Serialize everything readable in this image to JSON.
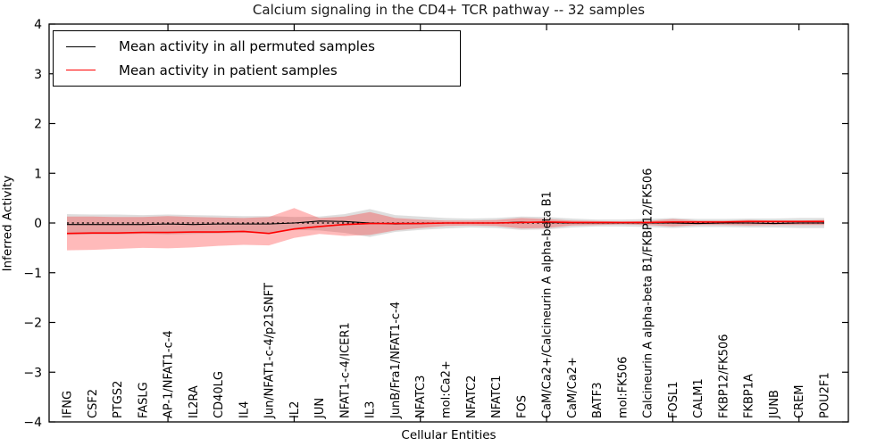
{
  "figure": {
    "title": "Calcium signaling in the CD4+ TCR pathway -- 32 samples",
    "xlabel": "Cellular Entities",
    "ylabel": "Inferred Activity"
  },
  "legend": {
    "entries": [
      {
        "label": "Mean activity in all permuted samples",
        "color": "#000000"
      },
      {
        "label": "Mean activity in patient samples",
        "color": "#ff0000"
      }
    ]
  },
  "chart_data": {
    "type": "line",
    "title": "Calcium signaling in the CD4+ TCR pathway -- 32 samples",
    "xlabel": "Cellular Entities",
    "ylabel": "Inferred Activity",
    "ylim": [
      -4,
      4
    ],
    "yticks": [
      -4,
      -3,
      -2,
      -1,
      0,
      1,
      2,
      3,
      4
    ],
    "ytick_labels": [
      "−4",
      "−3",
      "−2",
      "−1",
      "0",
      "1",
      "2",
      "3",
      "4"
    ],
    "grid": false,
    "legend_position": "upper left",
    "major_tick_indices": [
      4,
      9,
      14,
      19,
      24,
      29
    ],
    "zero_line": {
      "y": 0,
      "style": "dashed",
      "color": "#000000"
    },
    "categories": [
      "IFNG",
      "CSF2",
      "PTGS2",
      "FASLG",
      "AP-1/NFAT1-c-4",
      "IL2RA",
      "CD40LG",
      "IL4",
      "Jun/NFAT1-c-4/p21SNFT",
      "IL2",
      "JUN",
      "NFAT1-c-4/ICER1",
      "IL3",
      "JunB/Fra1/NFAT1-c-4",
      "NFATC3",
      "mol:Ca2+",
      "NFATC2",
      "NFATC1",
      "FOS",
      "CaM/Ca2+/Calcineurin A alpha-beta B1",
      "CaM/Ca2+",
      "BATF3",
      "mol:FK506",
      "Calcineurin A alpha-beta B1/FKBP12/FK506",
      "FOSL1",
      "CALM1",
      "FKBP12/FK506",
      "FKBP1A",
      "JUNB",
      "CREM",
      "POU2F1"
    ],
    "series": [
      {
        "name": "Mean activity in all permuted samples",
        "color": "#000000",
        "line_width": 1.1,
        "band_color": "rgba(0,0,0,0.13)",
        "values": [
          -0.03,
          -0.03,
          -0.03,
          -0.03,
          -0.02,
          -0.03,
          -0.02,
          -0.02,
          -0.02,
          0.0,
          0.04,
          0.03,
          0.0,
          -0.02,
          -0.01,
          0.0,
          0.0,
          0.0,
          0.02,
          0.01,
          0.0,
          0.0,
          0.0,
          0.0,
          0.0,
          -0.01,
          0.0,
          0.0,
          -0.01,
          0.0,
          0.0
        ],
        "band_upper": [
          0.18,
          0.17,
          0.17,
          0.16,
          0.17,
          0.16,
          0.15,
          0.14,
          0.14,
          0.12,
          0.13,
          0.18,
          0.28,
          0.16,
          0.13,
          0.1,
          0.09,
          0.1,
          0.13,
          0.12,
          0.09,
          0.07,
          0.07,
          0.08,
          0.1,
          0.08,
          0.08,
          0.09,
          0.09,
          0.1,
          0.1
        ],
        "band_lower": [
          -0.24,
          -0.23,
          -0.23,
          -0.22,
          -0.23,
          -0.22,
          -0.21,
          -0.2,
          -0.2,
          -0.14,
          -0.15,
          -0.2,
          -0.28,
          -0.18,
          -0.14,
          -0.11,
          -0.09,
          -0.1,
          -0.14,
          -0.13,
          -0.09,
          -0.07,
          -0.07,
          -0.08,
          -0.1,
          -0.08,
          -0.08,
          -0.09,
          -0.09,
          -0.1,
          -0.1
        ]
      },
      {
        "name": "Mean activity in patient samples",
        "color": "#ff0000",
        "line_width": 1.6,
        "band_color": "rgba(255,0,0,0.27)",
        "values": [
          -0.21,
          -0.2,
          -0.2,
          -0.19,
          -0.19,
          -0.18,
          -0.18,
          -0.17,
          -0.21,
          -0.12,
          -0.07,
          -0.03,
          -0.01,
          -0.01,
          -0.01,
          0.0,
          0.0,
          0.0,
          0.01,
          0.02,
          0.01,
          0.01,
          0.01,
          0.01,
          0.02,
          0.02,
          0.02,
          0.03,
          0.03,
          0.03,
          0.03
        ],
        "band_upper": [
          0.13,
          0.13,
          0.12,
          0.12,
          0.14,
          0.12,
          0.11,
          0.1,
          0.12,
          0.3,
          0.1,
          0.13,
          0.22,
          0.1,
          0.07,
          0.05,
          0.05,
          0.06,
          0.1,
          0.08,
          0.05,
          0.04,
          0.03,
          0.04,
          0.08,
          0.05,
          0.05,
          0.06,
          0.05,
          0.05,
          0.06
        ],
        "band_lower": [
          -0.55,
          -0.54,
          -0.52,
          -0.5,
          -0.51,
          -0.49,
          -0.46,
          -0.44,
          -0.45,
          -0.3,
          -0.22,
          -0.26,
          -0.24,
          -0.15,
          -0.1,
          -0.06,
          -0.05,
          -0.06,
          -0.11,
          -0.1,
          -0.05,
          -0.04,
          -0.03,
          -0.04,
          -0.07,
          -0.04,
          -0.04,
          -0.05,
          -0.04,
          -0.04,
          -0.04
        ]
      }
    ]
  }
}
